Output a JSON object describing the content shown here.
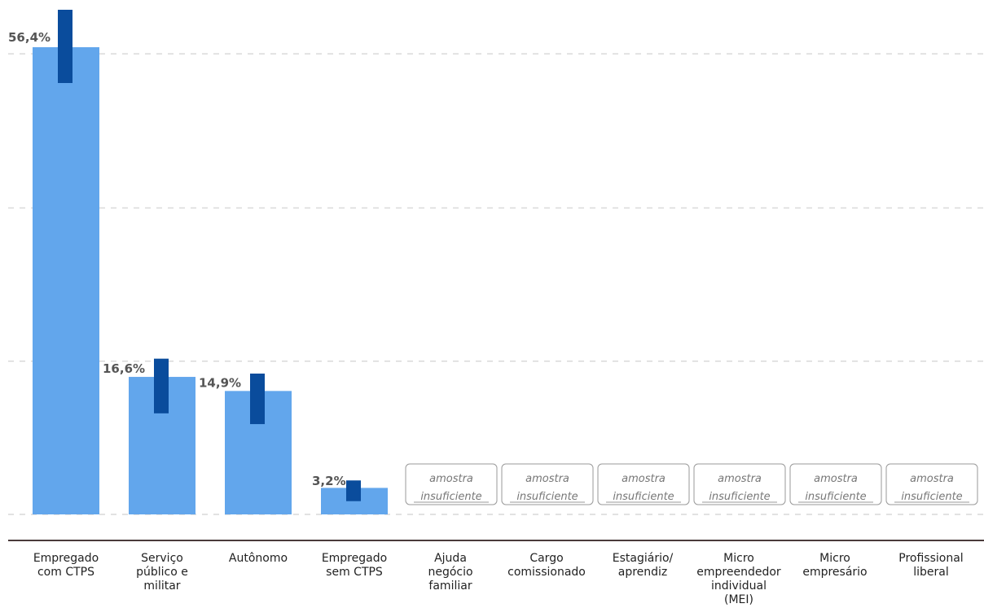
{
  "chart_data": {
    "type": "bar",
    "categories": [
      [
        "Empregado",
        "com CTPS"
      ],
      [
        "Serviço",
        "público e",
        "militar"
      ],
      [
        "Autônomo"
      ],
      [
        "Empregado",
        "sem CTPS"
      ],
      [
        "Ajuda",
        "negócio",
        "familiar"
      ],
      [
        "Cargo",
        "comissionado"
      ],
      [
        "Estagiário/",
        "aprendiz"
      ],
      [
        "Micro",
        "empreendedor",
        "individual",
        "(MEI)"
      ],
      [
        "Micro",
        "empresário"
      ],
      [
        "Profissional",
        "liberal"
      ]
    ],
    "values": [
      56.4,
      16.6,
      14.9,
      3.2,
      null,
      null,
      null,
      null,
      null,
      null
    ],
    "value_labels": [
      "56,4%",
      "16,6%",
      "14,9%",
      "3,2%",
      "",
      "",
      "",
      "",
      "",
      ""
    ],
    "ci": [
      [
        48.3,
        56.4
      ],
      [
        12.2,
        18.8
      ],
      [
        10.9,
        17.0
      ],
      [
        1.6,
        4.1
      ],
      null,
      null,
      null,
      null,
      null,
      null
    ],
    "insufficient_label": [
      "amostra",
      "insuficiente"
    ],
    "ylim": [
      0,
      56.4
    ],
    "gridlines": [
      0,
      18.5,
      37.0,
      55.6
    ],
    "colors": {
      "bar": "#62a6ec",
      "ci": "#0a4c9c",
      "grid": "#d9d9d9",
      "axis": "#4a3b3b"
    }
  }
}
